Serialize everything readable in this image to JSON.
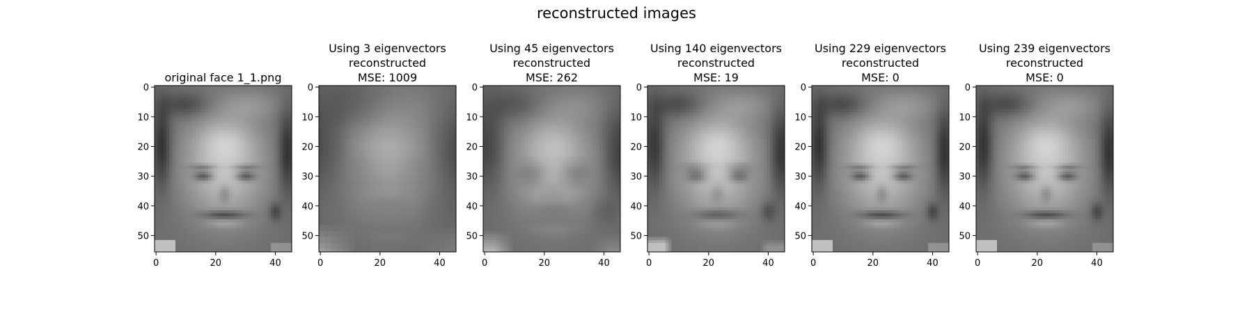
{
  "figure": {
    "suptitle": "reconstructed images"
  },
  "chart_data": [
    {
      "type": "image",
      "title_lines": [
        "original face 1_1.png"
      ],
      "x_ticks": [
        0,
        20,
        40
      ],
      "y_ticks": [
        0,
        10,
        20,
        30,
        40,
        50
      ],
      "xlim": [
        -0.5,
        45.5
      ],
      "ylim": [
        55.5,
        -0.5
      ],
      "colormap": "gray",
      "blur": 0
    },
    {
      "type": "image",
      "title_lines": [
        "Using 3 eigenvectors",
        "reconstructed",
        "MSE: 1009"
      ],
      "eigenvectors": 3,
      "mse": 1009,
      "x_ticks": [
        0,
        20,
        40
      ],
      "y_ticks": [
        0,
        10,
        20,
        30,
        40,
        50
      ],
      "xlim": [
        -0.5,
        45.5
      ],
      "ylim": [
        55.5,
        -0.5
      ],
      "colormap": "gray",
      "blur": 1.0
    },
    {
      "type": "image",
      "title_lines": [
        "Using 45 eigenvectors",
        "reconstructed",
        "MSE: 262"
      ],
      "eigenvectors": 45,
      "mse": 262,
      "x_ticks": [
        0,
        20,
        40
      ],
      "y_ticks": [
        0,
        10,
        20,
        30,
        40,
        50
      ],
      "xlim": [
        -0.5,
        45.5
      ],
      "ylim": [
        55.5,
        -0.5
      ],
      "colormap": "gray",
      "blur": 0.55
    },
    {
      "type": "image",
      "title_lines": [
        "Using 140 eigenvectors",
        "reconstructed",
        "MSE: 19"
      ],
      "eigenvectors": 140,
      "mse": 19,
      "x_ticks": [
        0,
        20,
        40
      ],
      "y_ticks": [
        0,
        10,
        20,
        30,
        40,
        50
      ],
      "xlim": [
        -0.5,
        45.5
      ],
      "ylim": [
        55.5,
        -0.5
      ],
      "colormap": "gray",
      "blur": 0.15
    },
    {
      "type": "image",
      "title_lines": [
        "Using 229 eigenvectors",
        "reconstructed",
        "MSE: 0"
      ],
      "eigenvectors": 229,
      "mse": 0,
      "x_ticks": [
        0,
        20,
        40
      ],
      "y_ticks": [
        0,
        10,
        20,
        30,
        40,
        50
      ],
      "xlim": [
        -0.5,
        45.5
      ],
      "ylim": [
        55.5,
        -0.5
      ],
      "colormap": "gray",
      "blur": 0
    },
    {
      "type": "image",
      "title_lines": [
        "Using 239 eigenvectors",
        "reconstructed",
        "MSE: 0"
      ],
      "eigenvectors": 239,
      "mse": 0,
      "x_ticks": [
        0,
        20,
        40
      ],
      "y_ticks": [
        0,
        10,
        20,
        30,
        40,
        50
      ],
      "xlim": [
        -0.5,
        45.5
      ],
      "ylim": [
        55.5,
        -0.5
      ],
      "colormap": "gray",
      "blur": 0
    }
  ]
}
